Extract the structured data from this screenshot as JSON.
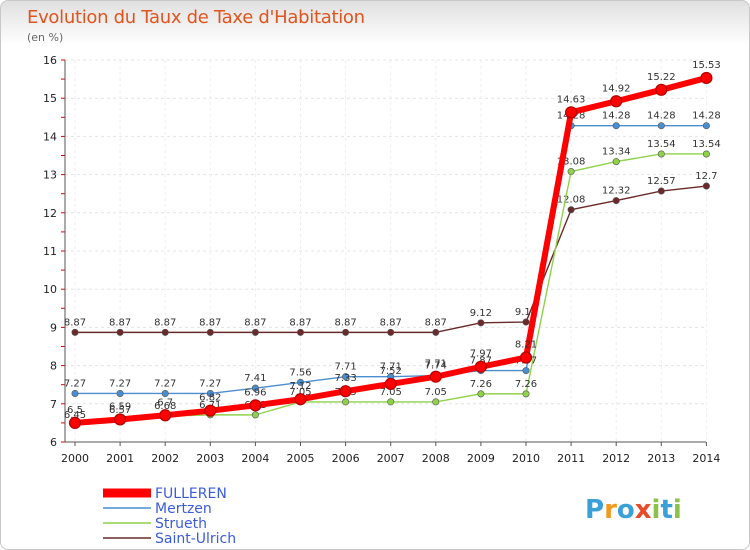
{
  "header": {
    "title": "Evolution du Taux de Taxe d'Habitation",
    "subtitle": "(en %)"
  },
  "brand": {
    "text": "Proxiti"
  },
  "chart_data": {
    "type": "line",
    "title": "Evolution du Taux de Taxe d'Habitation",
    "ylabel": "(en %)",
    "xlabel": "",
    "ylim": [
      6,
      16
    ],
    "yticks": [
      "6",
      "7",
      "8",
      "9",
      "10",
      "11",
      "12",
      "13",
      "14",
      "15",
      "16"
    ],
    "categories": [
      "2000",
      "2001",
      "2002",
      "2003",
      "2004",
      "2005",
      "2006",
      "2007",
      "2008",
      "2009",
      "2010",
      "2011",
      "2012",
      "2013",
      "2014"
    ],
    "series": [
      {
        "name": "Saint-Ulrich",
        "color": "#6a2a2a",
        "values": [
          8.87,
          8.87,
          8.87,
          8.87,
          8.87,
          8.87,
          8.87,
          8.87,
          8.87,
          9.12,
          9.14,
          12.08,
          12.32,
          12.57,
          12.7
        ],
        "labels": [
          "8.87",
          "8.87",
          "8.87",
          "8.87",
          "8.87",
          "8.87",
          "8.87",
          "8.87",
          "8.87",
          "9.12",
          "9.14",
          "12.08",
          "12.32",
          "12.57",
          "12.7"
        ]
      },
      {
        "name": "Strueth",
        "color": "#8fd24a",
        "values": [
          6.45,
          6.57,
          6.68,
          6.71,
          6.71,
          7.05,
          7.05,
          7.05,
          7.05,
          7.26,
          7.26,
          13.08,
          13.34,
          13.54,
          13.54
        ],
        "labels": [
          "6.45",
          "6.57",
          "6.68",
          "6.71",
          "6.71",
          "7.05",
          "7.05",
          "7.05",
          "7.05",
          "7.26",
          "7.26",
          "13.08",
          "13.34",
          "13.54",
          "13.54"
        ]
      },
      {
        "name": "Mertzen",
        "color": "#4a8ed0",
        "values": [
          7.27,
          7.27,
          7.27,
          7.27,
          7.41,
          7.56,
          7.71,
          7.71,
          7.74,
          7.87,
          7.87,
          14.28,
          14.28,
          14.28,
          14.28
        ],
        "labels": [
          "7.27",
          "7.27",
          "7.27",
          "7.27",
          "7.41",
          "7.56",
          "7.71",
          "7.71",
          "7.74",
          "7.87",
          "7.87",
          "14.28",
          "14.28",
          "14.28",
          "14.28"
        ]
      },
      {
        "name": "FULLEREN",
        "color": "#ff0000",
        "values": [
          6.5,
          6.59,
          6.7,
          6.82,
          6.96,
          7.12,
          7.33,
          7.52,
          7.71,
          7.97,
          8.21,
          14.63,
          14.92,
          15.22,
          15.53
        ],
        "labels": [
          "6.5",
          "6.59",
          "6.7",
          "6.82",
          "6.96",
          "7.12",
          "7.33",
          "7.52",
          "7.71",
          "7.97",
          "8.21",
          "14.63",
          "14.92",
          "15.22",
          "15.53"
        ]
      }
    ],
    "legend": [
      {
        "name": "FULLEREN",
        "color": "#ff0000",
        "text_color": "#3b5bdb"
      },
      {
        "name": "Mertzen",
        "color": "#4a8ed0",
        "text_color": "#3b5bdb"
      },
      {
        "name": "Strueth",
        "color": "#8fd24a",
        "text_color": "#3b5bdb"
      },
      {
        "name": "Saint-Ulrich",
        "color": "#6a2a2a",
        "text_color": "#3b5bdb"
      }
    ],
    "legend_position": "bottom-left"
  }
}
